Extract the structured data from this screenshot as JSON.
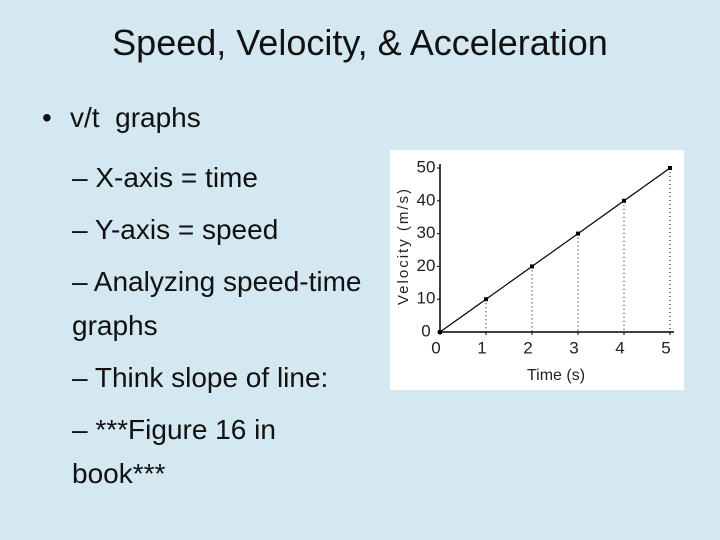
{
  "slide": {
    "title": "Speed, Velocity, & Acceleration",
    "bullet": "v/t  graphs",
    "sub_items": [
      "– X-axis = time",
      "– Y-axis = speed",
      "– Analyzing speed-time graphs",
      "– Think slope of line:",
      "– ***Figure 16 in book***"
    ]
  },
  "chart_data": {
    "type": "line",
    "x_label": "Time (s)",
    "y_label": "Velocity (m/s)",
    "x": [
      0,
      1,
      2,
      3,
      4,
      5
    ],
    "values": [
      0,
      10,
      20,
      30,
      40,
      50
    ],
    "color": "#000000",
    "xlim": [
      0,
      5
    ],
    "ylim": [
      0,
      50
    ],
    "xticks": [
      0,
      1,
      2,
      3,
      4,
      5
    ],
    "yticks": [
      0,
      10,
      20,
      30,
      40,
      50
    ]
  }
}
